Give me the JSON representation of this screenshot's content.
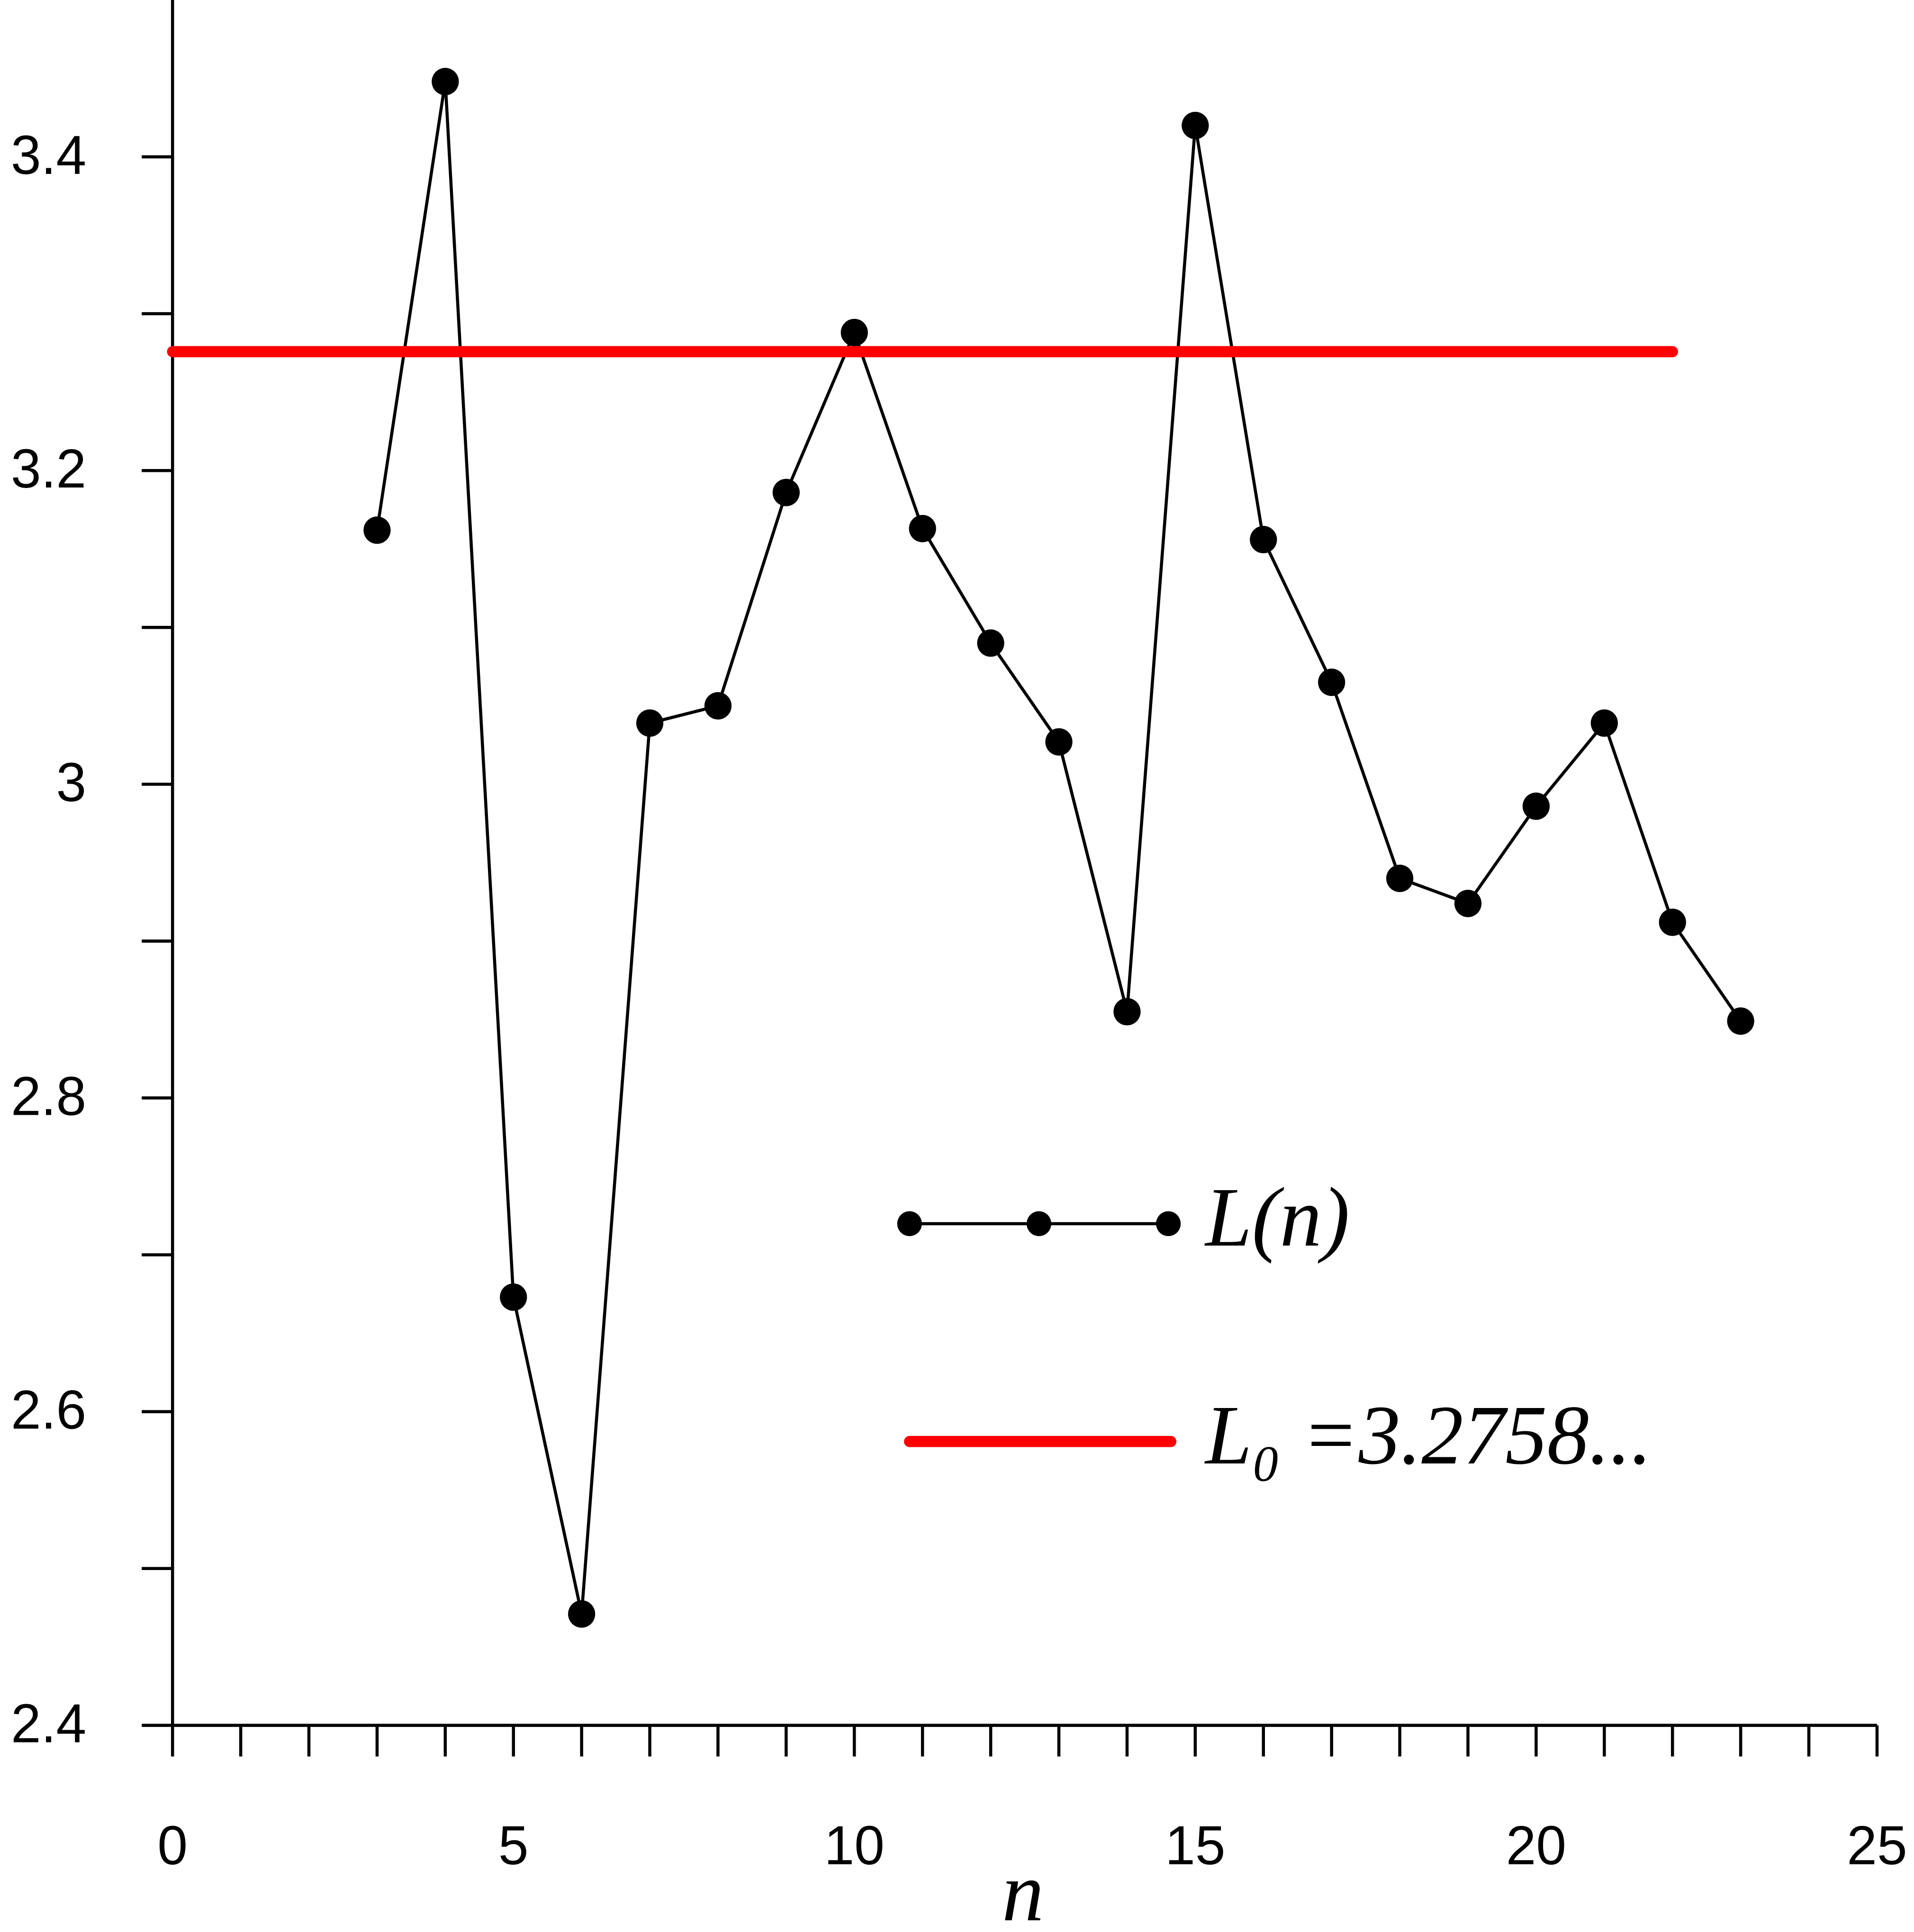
{
  "chart_data": {
    "type": "line",
    "x_label": "n",
    "series": [
      {
        "name": "L(n)",
        "color": "#000000",
        "marker": true,
        "x": [
          3,
          4,
          5,
          6,
          7,
          8,
          9,
          10,
          11,
          12,
          13,
          14,
          15,
          16,
          17,
          18,
          19,
          20,
          21,
          22,
          23
        ],
        "values": [
          3.162,
          3.448,
          2.673,
          2.471,
          3.039,
          3.05,
          3.186,
          3.288,
          3.163,
          3.09,
          3.027,
          2.855,
          3.42,
          3.156,
          3.065,
          2.94,
          2.924,
          2.986,
          3.039,
          2.912,
          2.849
        ]
      },
      {
        "name": "L₀ =3.2758...",
        "color": "#ff0000",
        "marker": false,
        "x": [
          0,
          22
        ],
        "values": [
          3.2758,
          3.2758
        ]
      }
    ],
    "xlim": [
      0,
      25
    ],
    "xticks": [
      0,
      5,
      10,
      15,
      20,
      25
    ],
    "x_minor_ticks": [
      1,
      2,
      3,
      4,
      6,
      7,
      8,
      9,
      11,
      12,
      13,
      14,
      16,
      17,
      18,
      19,
      21,
      22,
      23,
      24
    ],
    "ylim": [
      2.4,
      3.5
    ],
    "yticks": [
      2.4,
      2.6,
      2.8,
      3,
      3.2,
      3.4
    ],
    "y_minor_ticks": [
      2.5,
      2.7,
      2.9,
      3.1,
      3.3
    ],
    "grid": false
  }
}
